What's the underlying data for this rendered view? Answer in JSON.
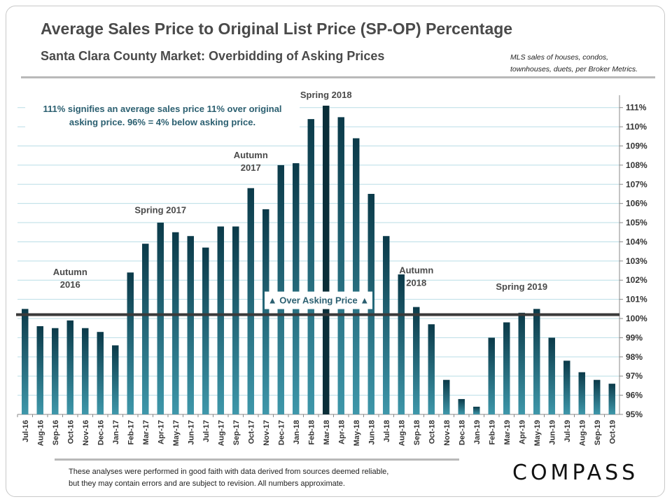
{
  "header": {
    "title": "Average Sales Price to Original List Price (SP-OP) Percentage",
    "subtitle": "Santa Clara County Market: Overbidding of Asking Prices",
    "source_line1": "MLS sales of houses, condos,",
    "source_line2": "townhouses, duets, per Broker Metrics."
  },
  "note": {
    "line1": "111% signifies an average sales price 11% over original",
    "line2": "asking price. 96% = 4% below asking price."
  },
  "footer": {
    "disclaimer_line1": "These analyses were performed in good faith with data derived from sources deemed reliable,",
    "disclaimer_line2": "but they may contain errors and are subject to revision. All numbers approximate.",
    "logo": "COMPASS"
  },
  "colors": {
    "bar_top": "#0b3a49",
    "bar_bottom": "#3e97aa",
    "bar_highlight": "#0a2e38",
    "reference_line": "#3a3a3a",
    "grid": "#b9dde6",
    "annotation_text": "#4a4a4a"
  },
  "chart_data": {
    "type": "bar",
    "title": "Average Sales Price to Original List Price (SP-OP) Percentage",
    "categories": [
      "Jul-16",
      "Aug-16",
      "Sep-16",
      "Oct-16",
      "Nov-16",
      "Dec-16",
      "Jan-17",
      "Feb-17",
      "Mar-17",
      "Apr-17",
      "May-17",
      "Jun-17",
      "Jul-17",
      "Aug-17",
      "Sep-17",
      "Oct-17",
      "Nov-17",
      "Dec-17",
      "Jan-18",
      "Feb-18",
      "Mar-18",
      "Apr-18",
      "May-18",
      "Jun-18",
      "Jul-18",
      "Aug-18",
      "Sep-18",
      "Oct-18",
      "Nov-18",
      "Dec-18",
      "Jan-19",
      "Feb-19",
      "Mar-19",
      "Apr-19",
      "May-19",
      "Jun-19",
      "Jul-19",
      "Aug-19",
      "Sep-19",
      "Oct-19"
    ],
    "values": [
      100.5,
      99.6,
      99.5,
      99.9,
      99.5,
      99.3,
      98.6,
      102.4,
      103.9,
      105.0,
      104.5,
      104.3,
      103.7,
      104.8,
      104.8,
      106.8,
      105.7,
      108.0,
      108.1,
      110.4,
      111.1,
      110.5,
      109.4,
      106.5,
      104.3,
      102.3,
      100.6,
      99.7,
      96.8,
      95.8,
      95.4,
      99.0,
      99.8,
      100.3,
      100.5,
      99.0,
      97.8,
      97.2,
      96.8,
      96.6
    ],
    "highlight_category": "Mar-18",
    "ylim": [
      95,
      111.5
    ],
    "yticks": [
      "95%",
      "96%",
      "97%",
      "98%",
      "99%",
      "100%",
      "101%",
      "102%",
      "103%",
      "104%",
      "105%",
      "106%",
      "107%",
      "108%",
      "109%",
      "110%",
      "111%"
    ],
    "ytick_values": [
      95,
      96,
      97,
      98,
      99,
      100,
      101,
      102,
      103,
      104,
      105,
      106,
      107,
      108,
      109,
      110,
      111
    ],
    "reference_value": 100.2,
    "reference_label": "▲ Over Asking Price ▲",
    "annotations": [
      {
        "lines": [
          "Autumn",
          "2016"
        ],
        "category": "Oct-16",
        "value": 101.6
      },
      {
        "lines": [
          "Spring 2017"
        ],
        "category": "Apr-17",
        "value": 105.5
      },
      {
        "lines": [
          "Autumn",
          "2017"
        ],
        "category": "Oct-17",
        "value": 107.7
      },
      {
        "lines": [
          "Spring 2018"
        ],
        "category": "Mar-18",
        "value": 111.5
      },
      {
        "lines": [
          "Autumn",
          "2018"
        ],
        "category": "Sep-18",
        "value": 101.7
      },
      {
        "lines": [
          "Spring 2019"
        ],
        "category": "Apr-19",
        "value": 101.5
      }
    ]
  }
}
